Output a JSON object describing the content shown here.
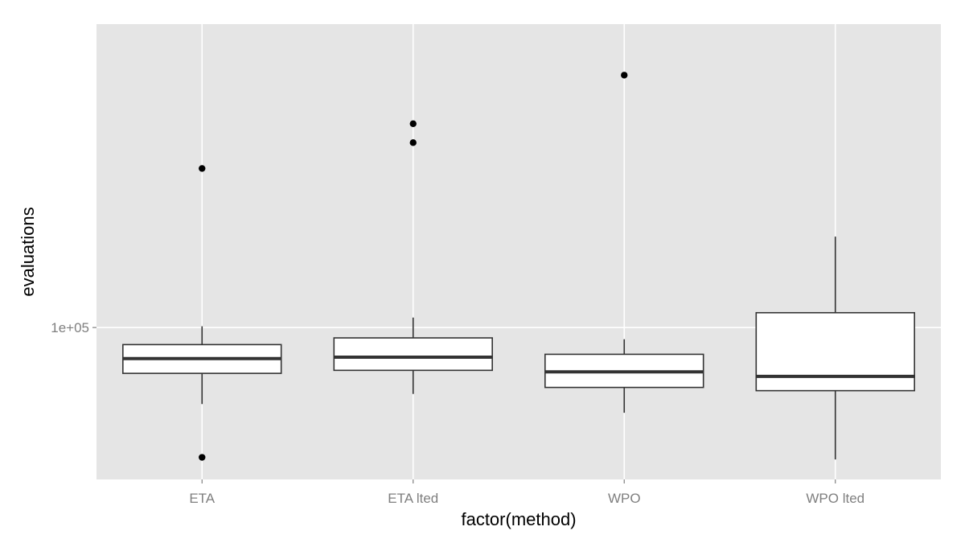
{
  "chart_data": {
    "type": "boxplot",
    "title": "",
    "xlabel": "factor(method)",
    "ylabel": "evaluations",
    "y_scale": "log10",
    "y_ticks": [
      {
        "value": 100000,
        "label": "1e+05"
      }
    ],
    "ylim": [
      55000,
      330000
    ],
    "grid": true,
    "categories": [
      "ETA",
      "ETA lted",
      "WPO",
      "WPO lted"
    ],
    "boxes": [
      {
        "category": "ETA",
        "whisker_low": 74000,
        "q1": 83500,
        "median": 88500,
        "q3": 93500,
        "whisker_high": 100500,
        "outliers": [
          60000,
          187000
        ]
      },
      {
        "category": "ETA lted",
        "whisker_low": 77000,
        "q1": 84500,
        "median": 89000,
        "q3": 96000,
        "whisker_high": 104000,
        "outliers": [
          207000,
          223000
        ]
      },
      {
        "category": "WPO",
        "whisker_low": 71500,
        "q1": 79000,
        "median": 84000,
        "q3": 90000,
        "whisker_high": 95500,
        "outliers": [
          270000
        ]
      },
      {
        "category": "WPO lted",
        "whisker_low": 59500,
        "q1": 78000,
        "median": 82500,
        "q3": 106000,
        "whisker_high": 143000,
        "outliers": []
      }
    ]
  }
}
